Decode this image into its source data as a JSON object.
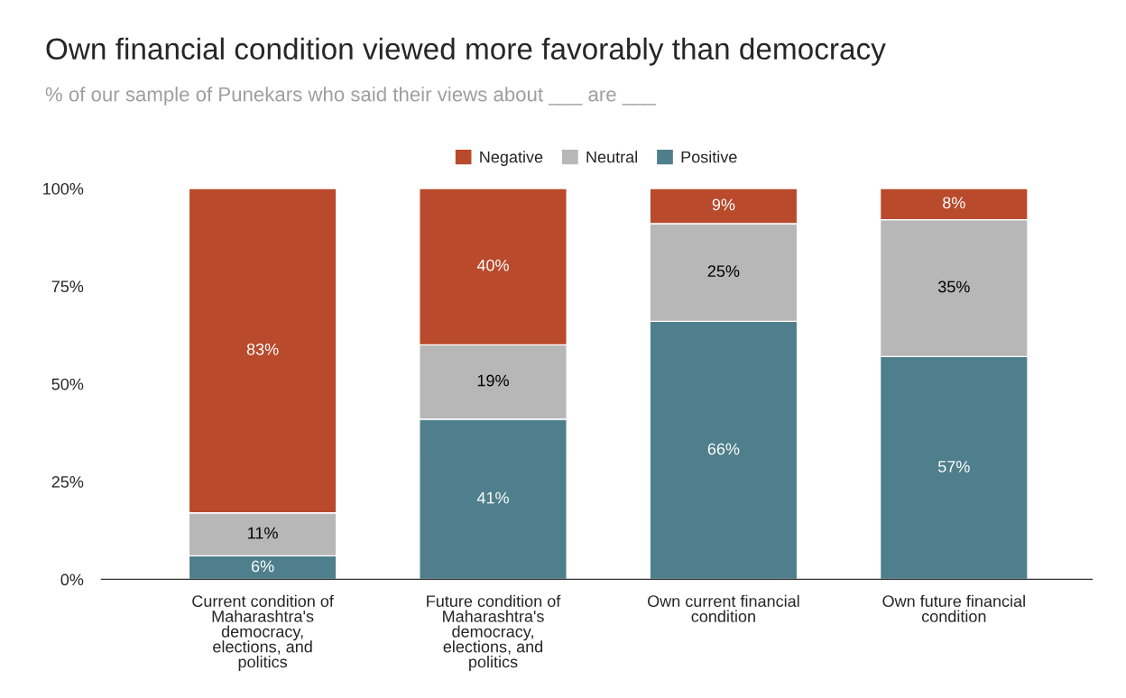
{
  "chart_data": {
    "type": "bar",
    "stacked": true,
    "title": "Own financial condition viewed more favorably than democracy",
    "subtitle": "% of our sample of Punekars who said their views about ___ are ___",
    "categories": [
      "Current condition of Maharashtra's democracy, elections, and politics",
      "Future condition of Maharashtra's democracy, elections, and politics",
      "Own current financial condition",
      "Own future financial condition"
    ],
    "series": [
      {
        "name": "Positive",
        "color": "#4f7f8c",
        "values": [
          6,
          41,
          66,
          57
        ]
      },
      {
        "name": "Neutral",
        "color": "#b7b7b7",
        "values": [
          11,
          19,
          25,
          35
        ]
      },
      {
        "name": "Negative",
        "color": "#b94a2c",
        "values": [
          83,
          40,
          9,
          8
        ]
      }
    ],
    "ylim": [
      0,
      100
    ],
    "yticks": [
      {
        "value": 0,
        "label": "0%"
      },
      {
        "value": 25,
        "label": "25%"
      },
      {
        "value": 50,
        "label": "50%"
      },
      {
        "value": 75,
        "label": "75%"
      },
      {
        "value": 100,
        "label": "100%"
      }
    ],
    "value_labels": [
      [
        "6%",
        "41%",
        "66%",
        "57%"
      ],
      [
        "11%",
        "19%",
        "25%",
        "35%"
      ],
      [
        "83%",
        "40%",
        "9%",
        "8%"
      ]
    ],
    "legend": "top",
    "grid": false
  }
}
